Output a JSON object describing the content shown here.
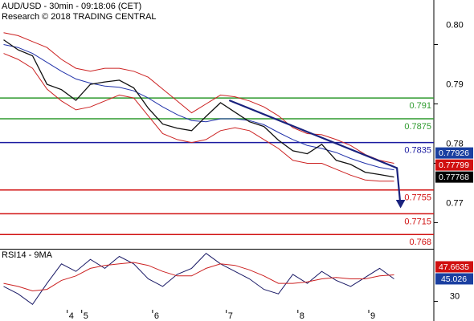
{
  "chart_data": [
    {
      "type": "line",
      "title": "AUD/USD - 30min - 09:18:06 (CET)",
      "subtitle": "Research © 2018 TRADING CENTRAL",
      "xlim": [
        -0.5,
        59.5
      ],
      "ylim": [
        0.7656,
        0.8075
      ],
      "yticks": [
        0.77,
        0.78,
        0.79,
        {
          "value": 0.8,
          "label": "0.80"
        }
      ],
      "x": [
        0,
        2,
        4,
        6,
        8,
        10,
        12,
        14,
        16,
        18,
        20,
        22,
        24,
        26,
        28,
        30,
        32,
        34,
        36,
        38,
        40,
        42,
        44,
        46,
        48,
        50,
        52,
        54
      ],
      "series": [
        {
          "color": "#cc2222",
          "values": [
            0.802,
            0.8015,
            0.8005,
            0.7995,
            0.7975,
            0.796,
            0.7955,
            0.796,
            0.796,
            0.7955,
            0.7945,
            0.7925,
            0.7905,
            0.7885,
            0.79,
            0.7915,
            0.7912,
            0.7905,
            0.7895,
            0.788,
            0.786,
            0.785,
            0.7848,
            0.784,
            0.783,
            0.7815,
            0.7805,
            0.78
          ]
        },
        {
          "color": "#cc2222",
          "values": [
            0.7985,
            0.7975,
            0.796,
            0.7925,
            0.7905,
            0.789,
            0.7895,
            0.7905,
            0.7915,
            0.791,
            0.788,
            0.785,
            0.784,
            0.7835,
            0.784,
            0.7855,
            0.786,
            0.7855,
            0.784,
            0.7825,
            0.7805,
            0.78,
            0.78,
            0.779,
            0.778,
            0.7772,
            0.777,
            0.777
          ]
        },
        {
          "color": "#2233aa",
          "values": [
            0.8,
            0.7995,
            0.7985,
            0.797,
            0.7955,
            0.7942,
            0.7935,
            0.793,
            0.7928,
            0.7922,
            0.791,
            0.7895,
            0.7882,
            0.7872,
            0.787,
            0.7875,
            0.7875,
            0.7872,
            0.7865,
            0.7852,
            0.784,
            0.783,
            0.7825,
            0.7818,
            0.7808,
            0.78,
            0.7793,
            0.7789
          ]
        },
        {
          "color": "#111111",
          "values": [
            0.8008,
            0.7991,
            0.7981,
            0.7933,
            0.7924,
            0.7906,
            0.7933,
            0.7937,
            0.794,
            0.7927,
            0.7893,
            0.7866,
            0.7859,
            0.7855,
            0.7879,
            0.7902,
            0.7886,
            0.787,
            0.7862,
            0.7839,
            0.7821,
            0.7816,
            0.7832,
            0.7805,
            0.7798,
            0.7785,
            0.7781,
            0.77768
          ]
        }
      ],
      "levels": [
        {
          "value": 0.791,
          "color": "#2e9a2e"
        },
        {
          "value": 0.7875,
          "color": "#2e9a2e"
        },
        {
          "value": 0.7835,
          "color": "#1a1aa0"
        },
        {
          "value": 0.7755,
          "color": "#d01010"
        },
        {
          "value": 0.7715,
          "color": "#d01010"
        },
        {
          "value": 0.768,
          "color": "#d01010"
        }
      ],
      "trendline": {
        "color": "#1a237e",
        "x": [
          31.2,
          54.4,
          54.9
        ],
        "values": [
          0.7906,
          0.7792,
          0.7727
        ]
      },
      "markers": [
        {
          "value": 0.77926,
          "color": "#1a3fa0"
        },
        {
          "value": 0.77799,
          "color": "#d01010"
        },
        {
          "value": 0.77768,
          "color": "#000000"
        }
      ]
    },
    {
      "type": "line",
      "title": "RSI14 - 9MA",
      "xlim": [
        -0.5,
        59.5
      ],
      "ylim": [
        18,
        64
      ],
      "yticks": [
        30
      ],
      "xticks": [
        {
          "value": 8.8,
          "label": "4"
        },
        {
          "value": 10.8,
          "label": "5"
        },
        {
          "value": 20.6,
          "label": "6"
        },
        {
          "value": 30.8,
          "label": "7"
        },
        {
          "value": 40.7,
          "label": "8"
        },
        {
          "value": 50.5,
          "label": "9"
        }
      ],
      "x": [
        0,
        2,
        4,
        6,
        8,
        10,
        12,
        14,
        16,
        18,
        20,
        22,
        24,
        26,
        28,
        30,
        32,
        34,
        36,
        38,
        40,
        42,
        44,
        46,
        48,
        50,
        52,
        54
      ],
      "series": [
        {
          "color": "#1a1a66",
          "values": [
            40,
            35,
            28,
            42,
            55,
            50,
            58,
            52,
            60,
            55,
            45,
            40,
            48,
            52,
            62,
            55,
            50,
            45,
            38,
            35,
            48,
            42,
            50,
            44,
            40,
            46,
            52,
            45.026
          ]
        },
        {
          "color": "#cc2222",
          "values": [
            42,
            40,
            37,
            38,
            44,
            47,
            52,
            54,
            55,
            56,
            54,
            50,
            47,
            47,
            52,
            55,
            54,
            51,
            47,
            42,
            42,
            43,
            45,
            46,
            45,
            45,
            47,
            47.6635
          ]
        }
      ],
      "markers": [
        {
          "value": 47.6635,
          "color": "#d01010"
        },
        {
          "value": 45.026,
          "color": "#1a3fa0"
        }
      ]
    }
  ]
}
